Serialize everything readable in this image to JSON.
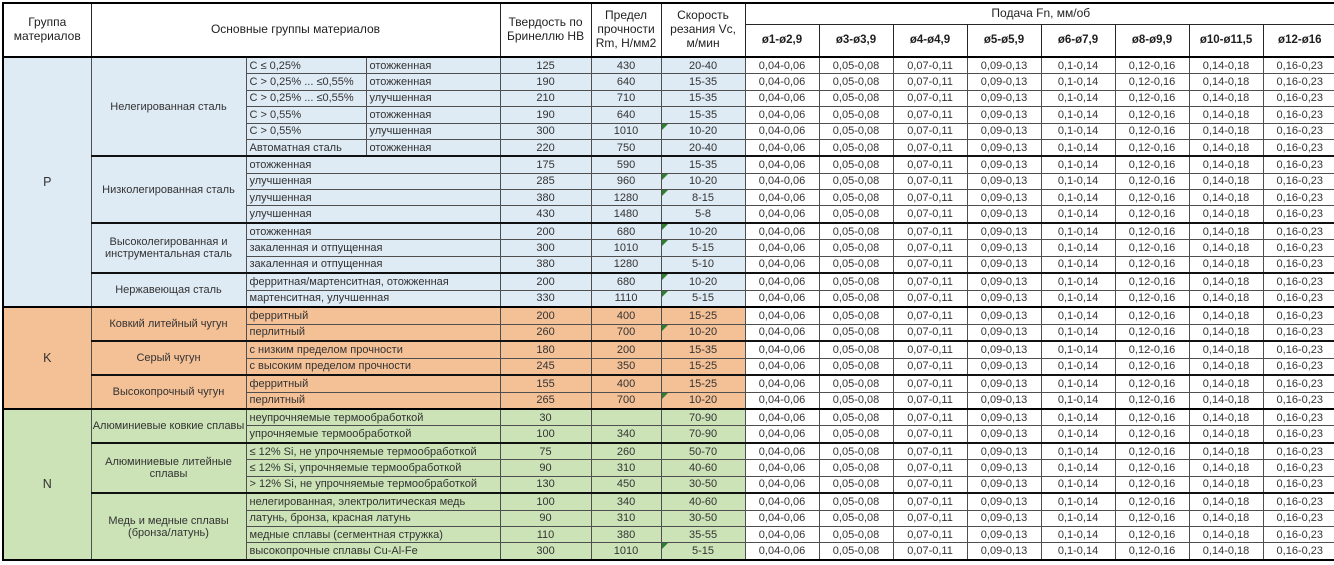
{
  "header": {
    "col_group": "Группа материалов",
    "col_main_groups": "Основные группы материалов",
    "col_hardness": "Твердость по Бринеллю HB",
    "col_strength": "Предел прочности Rm, Н/мм2",
    "col_speed": "Скорость резания Vc, м/мин",
    "feed_title": "Подача Fn, мм/об",
    "feed_columns": [
      "ø1-ø2,9",
      "ø3-ø3,9",
      "ø4-ø4,9",
      "ø5-ø5,9",
      "ø6-ø7,9",
      "ø8-ø9,9",
      "ø10-ø11,5",
      "ø12-ø16"
    ]
  },
  "feed_values": [
    "0,04-0,06",
    "0,05-0,08",
    "0,07-0,11",
    "0,09-0,13",
    "0,1-0,14",
    "0,12-0,16",
    "0,14-0,18",
    "0,16-0,23"
  ],
  "marker_color": "#2e7d32",
  "groups": [
    {
      "letter": "P",
      "bg": "#deeaf4",
      "subgroups": [
        {
          "name": "Нелегированная сталь",
          "rows": [
            {
              "spec": "C ≤ 0,25%",
              "state": "отожженная",
              "hb": "125",
              "rm": "430",
              "vc": "20-40",
              "marker": false
            },
            {
              "spec": "C > 0,25% ... ≤0,55%",
              "state": "отожженная",
              "hb": "190",
              "rm": "640",
              "vc": "15-35",
              "marker": false
            },
            {
              "spec": "C > 0,25% ... ≤0,55%",
              "state": "улучшенная",
              "hb": "210",
              "rm": "710",
              "vc": "15-35",
              "marker": false
            },
            {
              "spec": "C > 0,55%",
              "state": "отожженная",
              "hb": "190",
              "rm": "640",
              "vc": "15-35",
              "marker": false
            },
            {
              "spec": "C > 0,55%",
              "state": "улучшенная",
              "hb": "300",
              "rm": "1010",
              "vc": "10-20",
              "marker": true
            },
            {
              "spec": "Автоматная сталь",
              "state": "отожженная",
              "hb": "220",
              "rm": "750",
              "vc": "20-40",
              "marker": false
            }
          ]
        },
        {
          "name": "Низколегированная сталь",
          "rows": [
            {
              "desc": "отожженная",
              "hb": "175",
              "rm": "590",
              "vc": "15-35",
              "marker": false
            },
            {
              "desc": "улучшенная",
              "hb": "285",
              "rm": "960",
              "vc": "10-20",
              "marker": true
            },
            {
              "desc": "улучшенная",
              "hb": "380",
              "rm": "1280",
              "vc": "8-15",
              "marker": true
            },
            {
              "desc": "улучшенная",
              "hb": "430",
              "rm": "1480",
              "vc": "5-8",
              "marker": false
            }
          ]
        },
        {
          "name": "Высоколегированная и инструментальная сталь",
          "rows": [
            {
              "desc": "отожженная",
              "hb": "200",
              "rm": "680",
              "vc": "10-20",
              "marker": true
            },
            {
              "desc": "закаленная и отпущенная",
              "hb": "300",
              "rm": "1010",
              "vc": "5-15",
              "marker": true
            },
            {
              "desc": "закаленная и отпущенная",
              "hb": "380",
              "rm": "1280",
              "vc": "5-10",
              "marker": false
            }
          ]
        },
        {
          "name": "Нержавеющая сталь",
          "rows": [
            {
              "desc": "ферритная/мартенситная, отожженная",
              "hb": "200",
              "rm": "680",
              "vc": "10-20",
              "marker": true
            },
            {
              "desc": "мартенситная, улучшенная",
              "hb": "330",
              "rm": "1110",
              "vc": "5-15",
              "marker": true
            }
          ]
        }
      ]
    },
    {
      "letter": "K",
      "bg": "#f4c096",
      "subgroups": [
        {
          "name": "Ковкий литейный чугун",
          "rows": [
            {
              "desc": "ферритный",
              "hb": "200",
              "rm": "400",
              "vc": "15-25",
              "marker": false
            },
            {
              "desc": "перлитный",
              "hb": "260",
              "rm": "700",
              "vc": "10-20",
              "marker": true
            }
          ]
        },
        {
          "name": "Серый чугун",
          "rows": [
            {
              "desc": "с низким пределом прочности",
              "hb": "180",
              "rm": "200",
              "vc": "15-35",
              "marker": false
            },
            {
              "desc": "с высоким пределом прочности",
              "hb": "245",
              "rm": "350",
              "vc": "15-25",
              "marker": false
            }
          ]
        },
        {
          "name": "Высокопрочный чугун",
          "rows": [
            {
              "desc": "ферритный",
              "hb": "155",
              "rm": "400",
              "vc": "15-25",
              "marker": false
            },
            {
              "desc": "перлитный",
              "hb": "265",
              "rm": "700",
              "vc": "10-20",
              "marker": true
            }
          ]
        }
      ]
    },
    {
      "letter": "N",
      "bg": "#cbe3b6",
      "subgroups": [
        {
          "name": "Алюминиевые ковкие сплавы",
          "rows": [
            {
              "desc": "неупрочняемые термообработкой",
              "hb": "30",
              "rm": "",
              "vc": "70-90",
              "marker": false
            },
            {
              "desc": "упрочняемые термообработкой",
              "hb": "100",
              "rm": "340",
              "vc": "70-90",
              "marker": false
            }
          ]
        },
        {
          "name": "Алюминиевые литейные сплавы",
          "rows": [
            {
              "desc": "≤ 12% Si, не упрочняемые термообработкой",
              "hb": "75",
              "rm": "260",
              "vc": "50-70",
              "marker": false
            },
            {
              "desc": "≤ 12% Si, упрочняемые термообработкой",
              "hb": "90",
              "rm": "310",
              "vc": "40-60",
              "marker": false
            },
            {
              "desc": "> 12% Si, не упрочняемые термообработкой",
              "hb": "130",
              "rm": "450",
              "vc": "30-50",
              "marker": false
            }
          ]
        },
        {
          "name": "Медь и медные сплавы (бронза/латунь)",
          "rows": [
            {
              "desc": "нелегированная, электролитическая медь",
              "hb": "100",
              "rm": "340",
              "vc": "40-60",
              "marker": false
            },
            {
              "desc": "латунь, бронза, красная латунь",
              "hb": "90",
              "rm": "310",
              "vc": "30-50",
              "marker": false
            },
            {
              "desc": "медные сплавы (сегментная стружка)",
              "hb": "110",
              "rm": "380",
              "vc": "35-55",
              "marker": false
            },
            {
              "desc": "высокопрочные сплавы Cu-Al-Fe",
              "hb": "300",
              "rm": "1010",
              "vc": "5-15",
              "marker": true
            }
          ]
        }
      ]
    }
  ]
}
